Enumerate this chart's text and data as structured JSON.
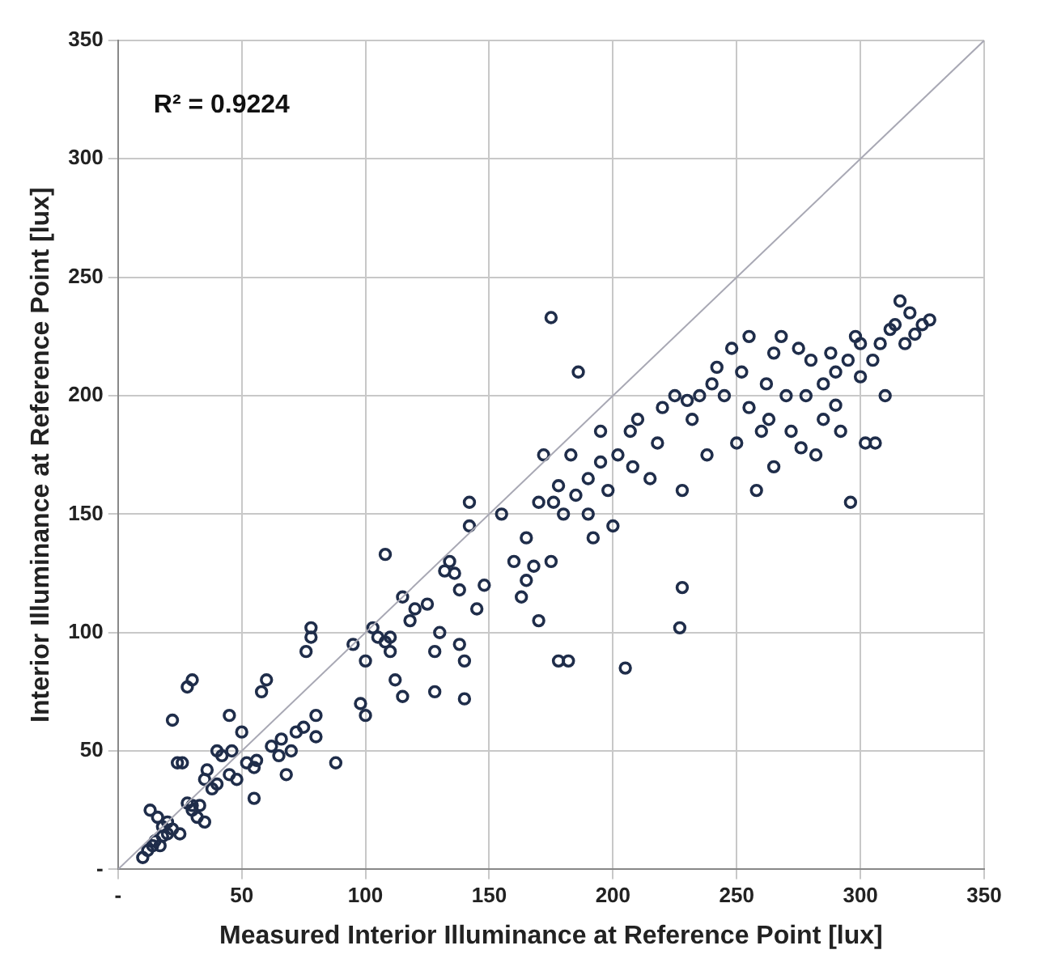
{
  "chart_data": {
    "type": "scatter",
    "xlabel": "Measured Interior Illuminance at Reference Point [lux]",
    "ylabel": "Interior Illuminance at Reference Point [lux]",
    "annotations": [
      "R² = 0.9224"
    ],
    "xlim": [
      0,
      350
    ],
    "ylim": [
      0,
      350
    ],
    "xticks": [
      {
        "value": 0,
        "label": "-"
      },
      50,
      100,
      150,
      200,
      250,
      300,
      350
    ],
    "yticks": [
      {
        "value": 0,
        "label": "-"
      },
      50,
      100,
      150,
      200,
      250,
      300,
      350
    ],
    "grid": true,
    "legend": false,
    "marker": "circle",
    "series": [
      {
        "type": "line",
        "color": "#a8a8b4",
        "marker": "none",
        "x": [
          0,
          350
        ],
        "values": [
          0,
          350
        ]
      },
      {
        "color": "#1f2d4a",
        "x": [
          10,
          12,
          14,
          15,
          17,
          18,
          20,
          22,
          25,
          13,
          16,
          18,
          20,
          24,
          26,
          22,
          28,
          30,
          35,
          36,
          38,
          40,
          42,
          40,
          30,
          32,
          35,
          33,
          28,
          30,
          45,
          48,
          46,
          45,
          50,
          52,
          55,
          56,
          55,
          58,
          60,
          62,
          65,
          66,
          70,
          72,
          68,
          75,
          76,
          78,
          78,
          80,
          80,
          88,
          95,
          98,
          100,
          100,
          103,
          105,
          108,
          110,
          110,
          112,
          108,
          115,
          115,
          118,
          120,
          125,
          128,
          128,
          130,
          132,
          134,
          136,
          138,
          138,
          140,
          142,
          142,
          140,
          145,
          148,
          155,
          160,
          163,
          165,
          165,
          168,
          170,
          170,
          172,
          175,
          176,
          175,
          178,
          178,
          182,
          180,
          183,
          185,
          186,
          190,
          190,
          192,
          195,
          195,
          198,
          200,
          202,
          205,
          207,
          208,
          210,
          215,
          218,
          220,
          225,
          228,
          228,
          227,
          230,
          232,
          235,
          238,
          240,
          242,
          245,
          248,
          250,
          252,
          255,
          255,
          258,
          260,
          262,
          263,
          265,
          265,
          268,
          270,
          272,
          275,
          276,
          278,
          280,
          282,
          285,
          288,
          290,
          292,
          295,
          296,
          298,
          300,
          302,
          305,
          306,
          308,
          310,
          312,
          314,
          316,
          318,
          320,
          322,
          325,
          328,
          300,
          290,
          285
        ],
        "values": [
          5,
          8,
          10,
          12,
          10,
          14,
          15,
          17,
          15,
          25,
          22,
          18,
          20,
          45,
          45,
          63,
          77,
          80,
          38,
          42,
          34,
          36,
          48,
          50,
          25,
          22,
          20,
          27,
          28,
          27,
          40,
          38,
          50,
          65,
          58,
          45,
          43,
          46,
          30,
          75,
          80,
          52,
          48,
          55,
          50,
          58,
          40,
          60,
          92,
          98,
          102,
          65,
          56,
          45,
          95,
          70,
          65,
          88,
          102,
          98,
          96,
          98,
          92,
          80,
          133,
          115,
          73,
          105,
          110,
          112,
          92,
          75,
          100,
          126,
          130,
          125,
          118,
          95,
          72,
          145,
          155,
          88,
          110,
          120,
          150,
          130,
          115,
          122,
          140,
          128,
          105,
          155,
          175,
          130,
          155,
          233,
          162,
          88,
          88,
          150,
          175,
          158,
          210,
          150,
          165,
          140,
          185,
          172,
          160,
          145,
          175,
          85,
          185,
          170,
          190,
          165,
          180,
          195,
          200,
          160,
          119,
          102,
          198,
          190,
          200,
          175,
          205,
          212,
          200,
          220,
          180,
          210,
          225,
          195,
          160,
          185,
          205,
          190,
          218,
          170,
          225,
          200,
          185,
          220,
          178,
          200,
          215,
          175,
          205,
          218,
          210,
          185,
          215,
          155,
          225,
          208,
          180,
          215,
          180,
          222,
          200,
          228,
          230,
          240,
          222,
          235,
          226,
          230,
          232,
          222,
          196,
          190
        ]
      }
    ]
  }
}
